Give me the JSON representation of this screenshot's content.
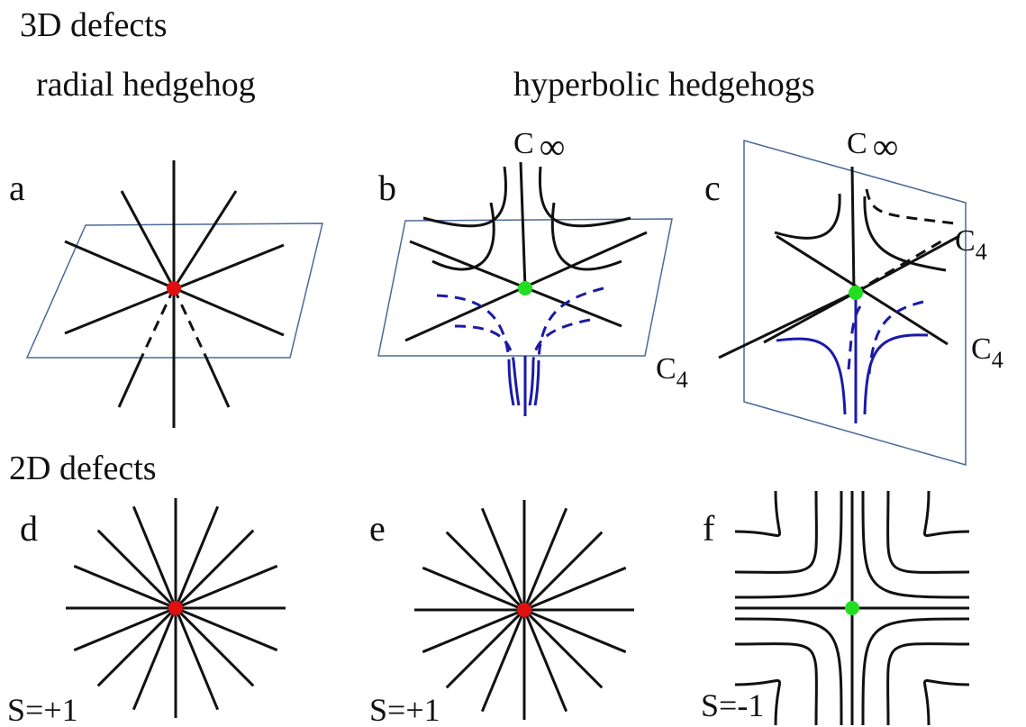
{
  "header_3d": "3D defects",
  "subtitles": [
    "radial hedgehog",
    "hyperbolic hedgehogs"
  ],
  "header_2d": "2D defects",
  "panel_labels": [
    "a",
    "b",
    "c",
    "d",
    "e",
    "f"
  ],
  "axis_labels": [
    {
      "base": "C",
      "sub": "∞"
    },
    {
      "base": "C",
      "sub": "∞"
    },
    {
      "base": "C",
      "sub": "4"
    },
    {
      "base": "C",
      "sub": "4"
    },
    {
      "base": "C",
      "sub": "4"
    }
  ],
  "charges": [
    "S=+1",
    "S=+1",
    "S=-1"
  ]
}
